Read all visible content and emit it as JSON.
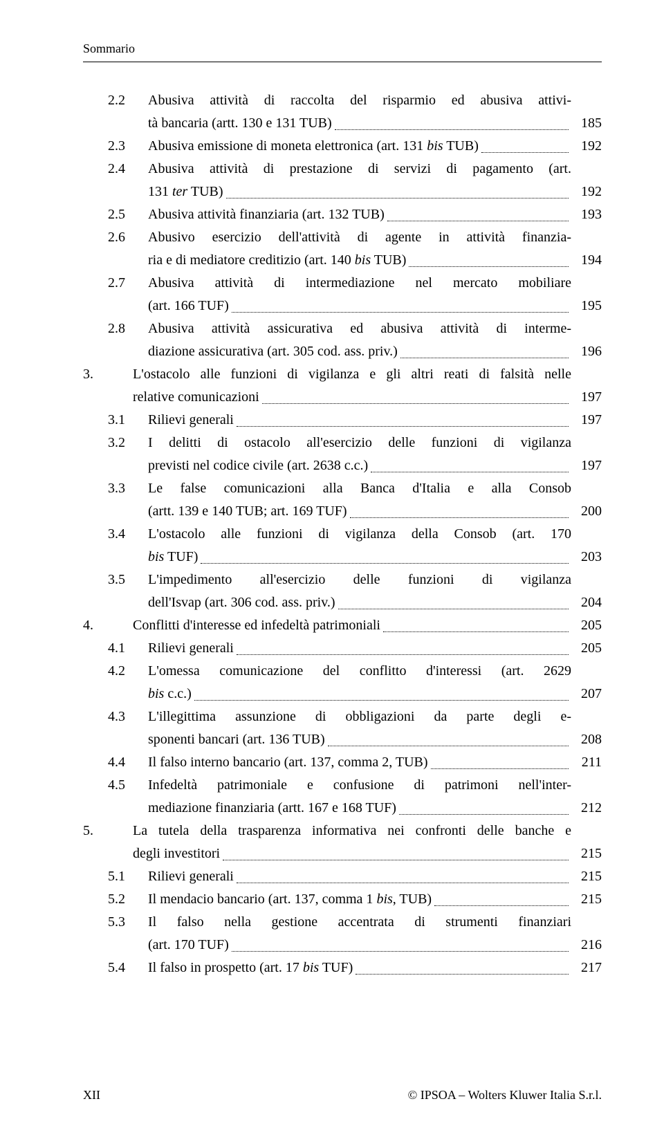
{
  "header": "Sommario",
  "footer": {
    "left": "XII",
    "right": "© IPSOA – Wolters Kluwer Italia S.r.l."
  },
  "entries": [
    {
      "lvl": 2,
      "num": "2.2",
      "lines": [
        "Abusiva attività di raccolta del risparmio ed abusiva attivi-",
        "tà bancaria (artt. 130 e 131 TUB) "
      ],
      "page": "185"
    },
    {
      "lvl": 2,
      "num": "2.3",
      "lines": [
        "Abusiva emissione di moneta elettronica (art. 131 <i>bis</i> TUB)"
      ],
      "page": "192"
    },
    {
      "lvl": 2,
      "num": "2.4",
      "lines": [
        "Abusiva attività di prestazione di servizi di pagamento (art.",
        "131 <i>ter</i> TUB) "
      ],
      "page": "192"
    },
    {
      "lvl": 2,
      "num": "2.5",
      "lines": [
        "Abusiva attività finanziaria (art. 132 TUB) "
      ],
      "page": "193"
    },
    {
      "lvl": 2,
      "num": "2.6",
      "lines": [
        "Abusivo esercizio dell'attività di agente in attività finanzia-",
        "ria e di mediatore creditizio (art. 140 <i>bis</i> TUB) "
      ],
      "page": "194"
    },
    {
      "lvl": 2,
      "num": "2.7",
      "lines": [
        "Abusiva attività di intermediazione nel mercato mobiliare",
        "(art. 166 TUF) "
      ],
      "page": "195"
    },
    {
      "lvl": 2,
      "num": "2.8",
      "lines": [
        "Abusiva attività assicurativa ed abusiva attività di interme-",
        "diazione assicurativa (art. 305 cod. ass. priv.) "
      ],
      "page": "196"
    },
    {
      "lvl": 1,
      "num": "3.",
      "lines": [
        "L'ostacolo alle funzioni di vigilanza e gli altri reati di falsità nelle",
        "relative comunicazioni "
      ],
      "page": "197"
    },
    {
      "lvl": 2,
      "num": "3.1",
      "lines": [
        "Rilievi generali "
      ],
      "page": "197"
    },
    {
      "lvl": 2,
      "num": "3.2",
      "lines": [
        "I delitti di ostacolo all'esercizio delle funzioni di vigilanza",
        "previsti nel codice civile (art. 2638 c.c.) "
      ],
      "page": "197"
    },
    {
      "lvl": 2,
      "num": "3.3",
      "lines": [
        "Le false comunicazioni alla Banca d'Italia e alla Consob",
        "(artt. 139 e 140 TUB; art. 169 TUF) "
      ],
      "page": "200"
    },
    {
      "lvl": 2,
      "num": "3.4",
      "lines": [
        "L'ostacolo alle funzioni di vigilanza della Consob (art. 170",
        "<i>bis</i> TUF) "
      ],
      "page": "203"
    },
    {
      "lvl": 2,
      "num": "3.5",
      "lines": [
        "L'impedimento all'esercizio delle funzioni di vigilanza",
        "dell'Isvap (art. 306 cod. ass. priv.) "
      ],
      "page": "204"
    },
    {
      "lvl": 1,
      "num": "4.",
      "lines": [
        "Conflitti d'interesse ed infedeltà patrimoniali "
      ],
      "page": "205"
    },
    {
      "lvl": 2,
      "num": "4.1",
      "lines": [
        "Rilievi generali "
      ],
      "page": "205"
    },
    {
      "lvl": 2,
      "num": "4.2",
      "lines": [
        "L'omessa comunicazione del conflitto d'interessi (art. 2629",
        "<i>bis</i> c.c.) "
      ],
      "page": "207"
    },
    {
      "lvl": 2,
      "num": "4.3",
      "lines": [
        "L'illegittima assunzione di obbligazioni da parte degli e-",
        "sponenti bancari (art. 136 TUB) "
      ],
      "page": "208"
    },
    {
      "lvl": 2,
      "num": "4.4",
      "lines": [
        "Il falso interno bancario (art. 137, comma 2, TUB) "
      ],
      "page": "211"
    },
    {
      "lvl": 2,
      "num": "4.5",
      "lines": [
        "Infedeltà patrimoniale e confusione di patrimoni nell'inter-",
        "mediazione finanziaria (artt. 167 e 168 TUF) "
      ],
      "page": "212"
    },
    {
      "lvl": 1,
      "num": "5.",
      "lines": [
        "La tutela della trasparenza informativa nei confronti delle banche e",
        "degli investitori "
      ],
      "page": "215"
    },
    {
      "lvl": 2,
      "num": "5.1",
      "lines": [
        "Rilievi generali "
      ],
      "page": "215"
    },
    {
      "lvl": 2,
      "num": "5.2",
      "lines": [
        "Il mendacio bancario (art. 137, comma 1 <i>bis</i>, TUB) "
      ],
      "page": "215"
    },
    {
      "lvl": 2,
      "num": "5.3",
      "lines": [
        "Il falso nella gestione accentrata di strumenti finanziari",
        "(art. 170 TUF) "
      ],
      "page": "216"
    },
    {
      "lvl": 2,
      "num": "5.4",
      "lines": [
        "Il falso in prospetto (art. 17 <i>bis</i> TUF) "
      ],
      "page": "217"
    }
  ]
}
